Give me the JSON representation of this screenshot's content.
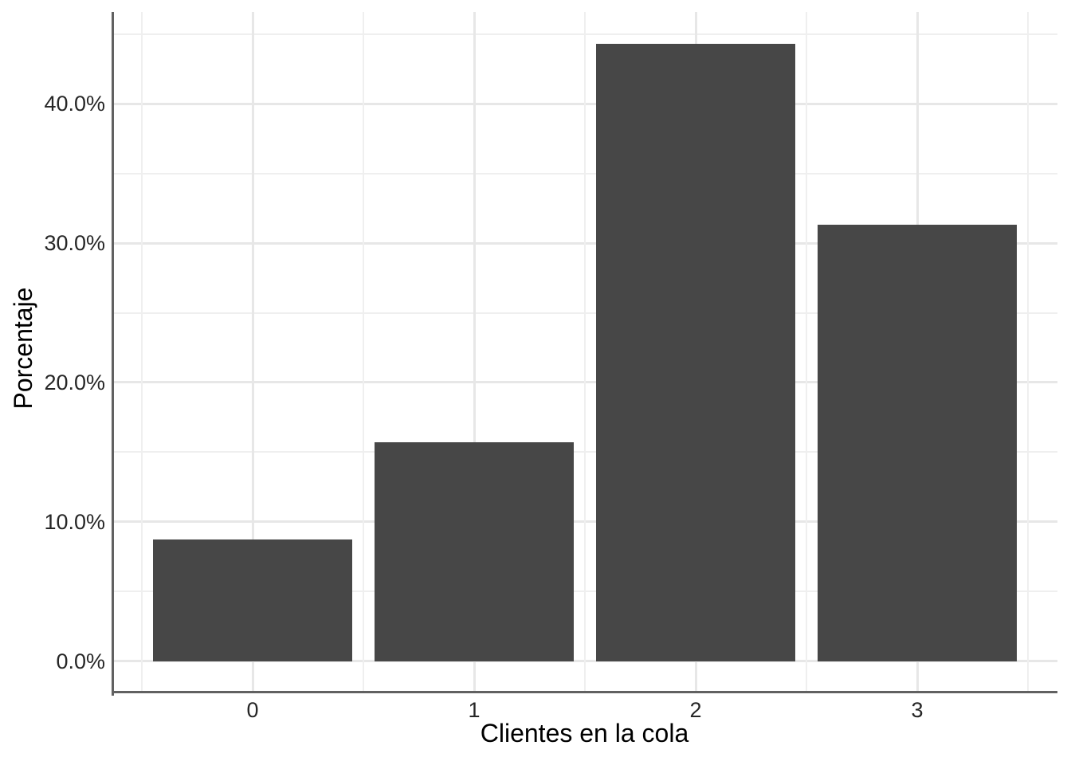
{
  "chart_data": {
    "type": "bar",
    "title": "",
    "xlabel": "Clientes en la cola",
    "ylabel": "Porcentaje",
    "categories": [
      "0",
      "1",
      "2",
      "3"
    ],
    "values": [
      8.7,
      15.7,
      44.3,
      31.3
    ],
    "value_unit": "%",
    "y_major_ticks": [
      0,
      10,
      20,
      30,
      40
    ],
    "y_tick_labels": [
      "0.0%",
      "10.0%",
      "20.0%",
      "30.0%",
      "40.0%"
    ],
    "y_minor_ticks": [
      5,
      15,
      25,
      35,
      45
    ],
    "ylim": [
      -2.2,
      46.6
    ],
    "grid": true,
    "legend": false,
    "colors": {
      "bar_fill": "#474747",
      "axis_line": "#616161",
      "major_grid": "#E7E7E7",
      "minor_grid": "#EFEFEF",
      "tick_text": "#262626",
      "title_text": "#000000",
      "background": "#FFFFFF"
    }
  }
}
